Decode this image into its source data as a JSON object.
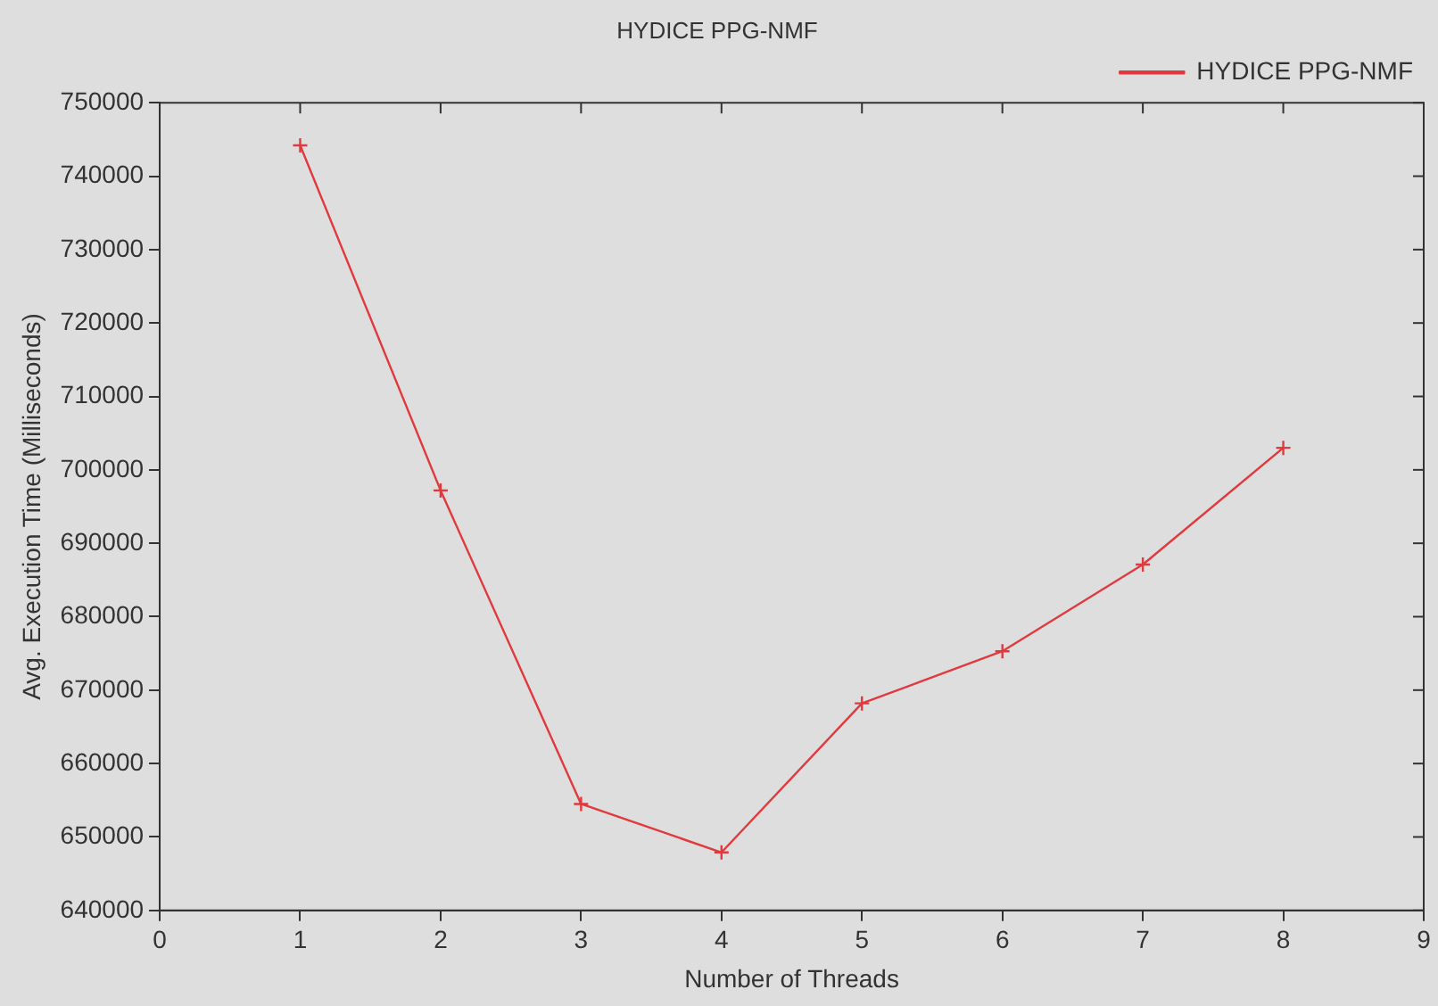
{
  "chart_data": {
    "type": "line",
    "title": "HYDICE PPG-NMF",
    "xlabel": "Number of Threads",
    "ylabel": "Avg. Execution Time (Milliseconds)",
    "x": [
      1,
      2,
      3,
      4,
      5,
      6,
      7,
      8
    ],
    "series": [
      {
        "name": "HYDICE PPG-NMF",
        "color": "#e0393e",
        "values": [
          744200,
          697200,
          654500,
          647900,
          668200,
          675300,
          687100,
          703000
        ]
      }
    ],
    "xlim": [
      0,
      9
    ],
    "xticks": [
      0,
      1,
      2,
      3,
      4,
      5,
      6,
      7,
      8,
      9
    ],
    "ylim": [
      640000,
      750000
    ],
    "yticks": [
      640000,
      650000,
      660000,
      670000,
      680000,
      690000,
      700000,
      710000,
      720000,
      730000,
      740000,
      750000
    ],
    "grid": false,
    "legend": "top right",
    "marker": "cross",
    "line_style": "solid"
  }
}
